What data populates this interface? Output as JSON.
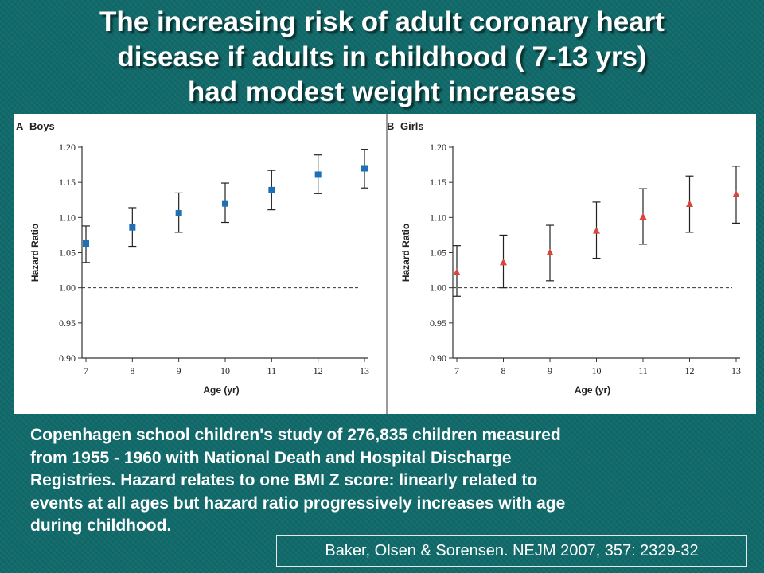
{
  "title_lines": [
    "The increasing risk of adult coronary heart",
    "disease if adults in childhood ( 7-13 yrs)",
    "had modest weight increases"
  ],
  "body_lines": [
    "Copenhagen school children's study of 276,835 children measured",
    "from 1955 - 1960 with National Death and Hospital Discharge",
    "Registries.  Hazard relates to one BMI Z score: linearly related to",
    "events at all ages but hazard ratio progressively increases with age",
    "during childhood."
  ],
  "citation": "Baker, Olsen & Sorensen.  NEJM 2007, 357: 2329-32",
  "colors": {
    "boys_marker": "#1f6fb4",
    "girls_marker": "#d9463b",
    "background": "#116a6a"
  },
  "chart_data": [
    {
      "type": "scatter",
      "panel_letter": "A",
      "panel_title": "Boys",
      "xlabel": "Age (yr)",
      "ylabel": "Hazard Ratio",
      "x": [
        7,
        8,
        9,
        10,
        11,
        12,
        13
      ],
      "y": [
        1.063,
        1.086,
        1.106,
        1.12,
        1.139,
        1.161,
        1.17
      ],
      "ci_low": [
        1.036,
        1.059,
        1.079,
        1.093,
        1.111,
        1.134,
        1.142
      ],
      "ci_high": [
        1.088,
        1.114,
        1.135,
        1.149,
        1.167,
        1.189,
        1.197
      ],
      "ylim": [
        0.9,
        1.2
      ],
      "yticks": [
        "0.90",
        "0.95",
        "1.00",
        "1.05",
        "1.10",
        "1.15",
        "1.20"
      ],
      "xticks": [
        "7",
        "8",
        "9",
        "10",
        "11",
        "12",
        "13"
      ],
      "reference_line": 1.0,
      "marker": "square",
      "grid": false
    },
    {
      "type": "scatter",
      "panel_letter": "B",
      "panel_title": "Girls",
      "xlabel": "Age (yr)",
      "ylabel": "Hazard Ratio",
      "x": [
        7,
        8,
        9,
        10,
        11,
        12,
        13
      ],
      "y": [
        1.022,
        1.036,
        1.05,
        1.081,
        1.101,
        1.119,
        1.133
      ],
      "ci_low": [
        0.988,
        1.0,
        1.01,
        1.042,
        1.062,
        1.079,
        1.092
      ],
      "ci_high": [
        1.06,
        1.075,
        1.089,
        1.122,
        1.141,
        1.159,
        1.173
      ],
      "ylim": [
        0.9,
        1.2
      ],
      "yticks": [
        "0.90",
        "0.95",
        "1.00",
        "1.05",
        "1.10",
        "1.15",
        "1.20"
      ],
      "xticks": [
        "7",
        "8",
        "9",
        "10",
        "11",
        "12",
        "13"
      ],
      "reference_line": 1.0,
      "marker": "triangle",
      "grid": false
    }
  ]
}
